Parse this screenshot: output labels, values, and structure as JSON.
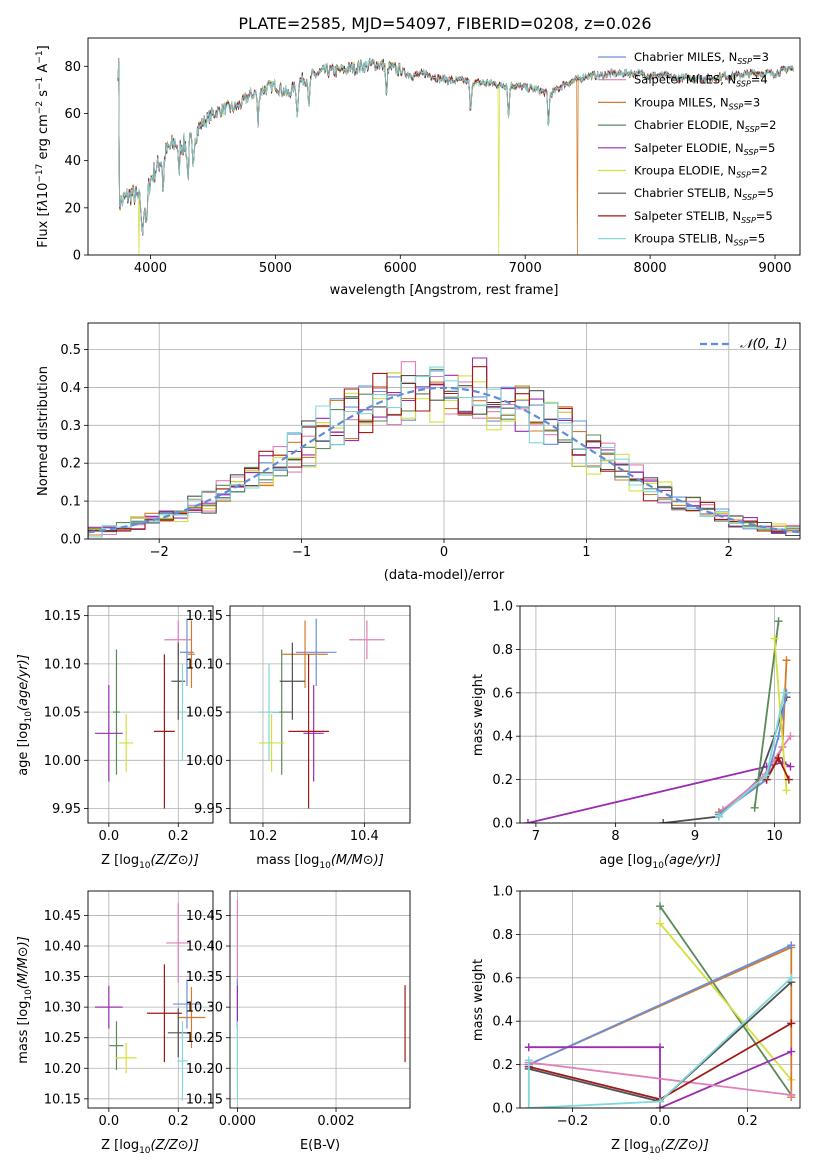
{
  "figure": {
    "title": "PLATE=2585, MJD=54097, FIBERID=0208, z=0.026"
  },
  "colors": {
    "Chabrier MILES": "#6a8fdc",
    "Salpeter MILES": "#e07fb8",
    "Kroupa MILES": "#d47a2a",
    "Chabrier ELODIE": "#5a8a5a",
    "Salpeter ELODIE": "#9a2db0",
    "Kroupa ELODIE": "#d4e040",
    "Chabrier STELIB": "#505050",
    "Salpeter STELIB": "#a01a1a",
    "Kroupa STELIB": "#80d8d8"
  },
  "chart_data": [
    {
      "id": "spectrum",
      "type": "line",
      "xlabel": "wavelength [Angstrom, rest frame]",
      "ylabel": "Flux [f",
      "xlim": [
        3500,
        9200
      ],
      "ylim": [
        0,
        92
      ],
      "xticks": [
        4000,
        5000,
        6000,
        7000,
        8000,
        9000
      ],
      "yticks": [
        0,
        20,
        40,
        60,
        80
      ],
      "legend_position": "top-right",
      "series": [
        {
          "name": "Chabrier MILES",
          "nssp": "3"
        },
        {
          "name": "Salpeter MILES",
          "nssp": "4"
        },
        {
          "name": "Kroupa MILES",
          "nssp": "3"
        },
        {
          "name": "Chabrier ELODIE",
          "nssp": "2"
        },
        {
          "name": "Salpeter ELODIE",
          "nssp": "5"
        },
        {
          "name": "Kroupa ELODIE",
          "nssp": "2"
        },
        {
          "name": "Chabrier STELIB",
          "nssp": "5"
        },
        {
          "name": "Salpeter STELIB",
          "nssp": "5"
        },
        {
          "name": "Kroupa STELIB",
          "nssp": "5"
        }
      ],
      "continuum": {
        "x": [
          3750,
          3800,
          3850,
          3900,
          3950,
          4000,
          4100,
          4200,
          4300,
          4400,
          4500,
          4600,
          4700,
          4800,
          4900,
          5000,
          5100,
          5200,
          5300,
          5400,
          5500,
          5600,
          5700,
          5800,
          5900,
          6000,
          6100,
          6200,
          6300,
          6400,
          6500,
          6600,
          6700,
          6800,
          6900,
          7000,
          7100,
          7200,
          7300,
          7400,
          7500,
          7600,
          7700,
          7800,
          7900,
          8000,
          8100,
          8200,
          8300,
          8400,
          8500,
          8600,
          8700,
          8800,
          8900,
          9000,
          9100
        ],
        "y": [
          22,
          24,
          26,
          24,
          20,
          32,
          42,
          48,
          46,
          55,
          60,
          62,
          63,
          68,
          70,
          72,
          68,
          74,
          76,
          78,
          78,
          79,
          80,
          81,
          80,
          78,
          76,
          77,
          75,
          74,
          74,
          73,
          73,
          72,
          72,
          71,
          70,
          68,
          72,
          74,
          76,
          76,
          77,
          77,
          77,
          76,
          76,
          75,
          75,
          75,
          75,
          76,
          76,
          77,
          77,
          77,
          79
        ]
      },
      "absorption_lines": [
        3934,
        3969,
        4102,
        4227,
        4300,
        4340,
        4861,
        5175,
        5270,
        5890,
        6563,
        6867,
        7186
      ],
      "spikes": [
        {
          "series": "Kroupa ELODIE",
          "x": 3910,
          "to": 0
        },
        {
          "series": "Kroupa ELODIE",
          "x": 6790,
          "to": 0
        },
        {
          "series": "Kroupa MILES",
          "x": 7420,
          "to": 0
        }
      ]
    },
    {
      "id": "residuals",
      "type": "area",
      "xlabel": "(data-model)/error",
      "ylabel": "Normed distribution",
      "xlim": [
        -2.5,
        2.5
      ],
      "ylim": [
        0,
        0.57
      ],
      "xticks": [
        -2,
        -1,
        0,
        1,
        2
      ],
      "yticks": [
        0.0,
        0.1,
        0.2,
        0.3,
        0.4,
        0.5
      ],
      "grid": true,
      "legend_position": "top-right",
      "gaussian_label": "𝒩(0, 1)",
      "bins": {
        "start": -2.5,
        "width": 0.1,
        "count": 50
      }
    },
    {
      "id": "age-vs-Z",
      "type": "scatter",
      "xlabel": "Z [log",
      "ylabel": "age  [log",
      "xlim": [
        -0.06,
        0.3
      ],
      "ylim": [
        9.935,
        10.16
      ],
      "xticks": [
        0.0,
        0.2
      ],
      "yticks": [
        9.95,
        10.0,
        10.05,
        10.1,
        10.15
      ],
      "grid": true,
      "points": [
        {
          "series": "Chabrier MILES",
          "x": 0.225,
          "xerr": 0.02,
          "y": 10.112,
          "yerr": 0.035
        },
        {
          "series": "Salpeter MILES",
          "x": 0.2,
          "xerr": 0.04,
          "y": 10.125,
          "yerr": 0.02
        },
        {
          "series": "Kroupa MILES",
          "x": 0.238,
          "xerr": 0.01,
          "y": 10.11,
          "yerr": 0.035
        },
        {
          "series": "Chabrier ELODIE",
          "x": 0.022,
          "xerr": 0.01,
          "y": 10.05,
          "yerr": 0.065
        },
        {
          "series": "Salpeter ELODIE",
          "x": 0.0,
          "xerr": 0.04,
          "y": 10.028,
          "yerr": 0.05
        },
        {
          "series": "Kroupa ELODIE",
          "x": 0.05,
          "xerr": 0.02,
          "y": 10.018,
          "yerr": 0.03
        },
        {
          "series": "Chabrier STELIB",
          "x": 0.2,
          "xerr": 0.02,
          "y": 10.082,
          "yerr": 0.04
        },
        {
          "series": "Salpeter STELIB",
          "x": 0.16,
          "xerr": 0.03,
          "y": 10.03,
          "yerr": 0.08
        },
        {
          "series": "Kroupa STELIB",
          "x": 0.212,
          "xerr": 0.01,
          "y": 10.05,
          "yerr": 0.05
        }
      ]
    },
    {
      "id": "age-vs-mass",
      "type": "scatter",
      "xlabel": "mass [log",
      "ylabel": "",
      "xlim": [
        10.135,
        10.49
      ],
      "ylim": [
        9.935,
        10.16
      ],
      "xticks": [
        10.2,
        10.4
      ],
      "yticks": [
        9.95,
        10.0,
        10.05,
        10.1,
        10.15
      ],
      "grid": true,
      "points": [
        {
          "series": "Chabrier MILES",
          "x": 10.305,
          "xerr": 0.04,
          "y": 10.112,
          "yerr": 0.035
        },
        {
          "series": "Salpeter MILES",
          "x": 10.405,
          "xerr": 0.035,
          "y": 10.125,
          "yerr": 0.02
        },
        {
          "series": "Kroupa MILES",
          "x": 10.283,
          "xerr": 0.045,
          "y": 10.11,
          "yerr": 0.035
        },
        {
          "series": "Chabrier ELODIE",
          "x": 10.237,
          "xerr": 0.02,
          "y": 10.05,
          "yerr": 0.065
        },
        {
          "series": "Salpeter ELODIE",
          "x": 10.3,
          "xerr": 0.02,
          "y": 10.028,
          "yerr": 0.05
        },
        {
          "series": "Kroupa ELODIE",
          "x": 10.217,
          "xerr": 0.025,
          "y": 10.018,
          "yerr": 0.03
        },
        {
          "series": "Chabrier STELIB",
          "x": 10.258,
          "xerr": 0.025,
          "y": 10.082,
          "yerr": 0.04
        },
        {
          "series": "Salpeter STELIB",
          "x": 10.29,
          "xerr": 0.04,
          "y": 10.03,
          "yerr": 0.08
        },
        {
          "series": "Kroupa STELIB",
          "x": 10.212,
          "xerr": 0.02,
          "y": 10.05,
          "yerr": 0.05
        }
      ]
    },
    {
      "id": "weight-vs-age",
      "type": "line",
      "xlabel": "age  [log",
      "ylabel": "mass weight",
      "xlim": [
        6.8,
        10.32
      ],
      "ylim": [
        0,
        1
      ],
      "xticks": [
        7,
        8,
        9,
        10
      ],
      "yticks": [
        0.0,
        0.2,
        0.4,
        0.6,
        0.8,
        1.0
      ],
      "grid": true,
      "series": [
        {
          "name": "Salpeter ELODIE",
          "x": [
            6.9,
            9.9,
            10.1,
            10.2
          ],
          "y": [
            0.0,
            0.26,
            0.28,
            0.26
          ]
        },
        {
          "name": "Chabrier STELIB",
          "x": [
            8.6,
            9.3,
            9.8,
            10.0,
            10.15
          ],
          "y": [
            0.0,
            0.03,
            0.2,
            0.4,
            0.58
          ]
        },
        {
          "name": "Kroupa MILES",
          "x": [
            9.3,
            9.9,
            10.1,
            10.15
          ],
          "y": [
            0.05,
            0.2,
            0.35,
            0.75
          ]
        },
        {
          "name": "Salpeter MILES",
          "x": [
            9.35,
            9.85,
            10.1,
            10.2
          ],
          "y": [
            0.06,
            0.21,
            0.35,
            0.4
          ]
        },
        {
          "name": "Chabrier MILES",
          "x": [
            9.3,
            9.9,
            10.05,
            10.15
          ],
          "y": [
            0.04,
            0.2,
            0.4,
            0.6
          ]
        },
        {
          "name": "Chabrier ELODIE",
          "x": [
            9.75,
            10.05
          ],
          "y": [
            0.07,
            0.93
          ]
        },
        {
          "name": "Kroupa ELODIE",
          "x": [
            10.0,
            10.15
          ],
          "y": [
            0.85,
            0.15
          ]
        },
        {
          "name": "Salpeter STELIB",
          "x": [
            9.9,
            10.05,
            10.18
          ],
          "y": [
            0.2,
            0.3,
            0.2
          ]
        },
        {
          "name": "Kroupa STELIB",
          "x": [
            9.3,
            9.9,
            10.12
          ],
          "y": [
            0.03,
            0.22,
            0.6
          ]
        }
      ]
    },
    {
      "id": "mass-vs-Z",
      "type": "scatter",
      "xlabel": "Z [log",
      "ylabel": "mass [log",
      "xlim": [
        -0.06,
        0.3
      ],
      "ylim": [
        10.135,
        10.49
      ],
      "xticks": [
        0.0,
        0.2
      ],
      "yticks": [
        10.15,
        10.2,
        10.25,
        10.3,
        10.35,
        10.4,
        10.45
      ],
      "grid": true,
      "points": [
        {
          "series": "Chabrier MILES",
          "x": 0.225,
          "xerr": 0.04,
          "y": 10.305,
          "yerr": 0.04
        },
        {
          "series": "Salpeter MILES",
          "x": 0.2,
          "xerr": 0.035,
          "y": 10.405,
          "yerr": 0.065
        },
        {
          "series": "Kroupa MILES",
          "x": 0.238,
          "xerr": 0.04,
          "y": 10.283,
          "yerr": 0.05
        },
        {
          "series": "Chabrier ELODIE",
          "x": 0.022,
          "xerr": 0.02,
          "y": 10.237,
          "yerr": 0.04
        },
        {
          "series": "Salpeter ELODIE",
          "x": 0.0,
          "xerr": 0.04,
          "y": 10.3,
          "yerr": 0.035
        },
        {
          "series": "Kroupa ELODIE",
          "x": 0.05,
          "xerr": 0.03,
          "y": 10.217,
          "yerr": 0.025
        },
        {
          "series": "Chabrier STELIB",
          "x": 0.2,
          "xerr": 0.03,
          "y": 10.258,
          "yerr": 0.04
        },
        {
          "series": "Salpeter STELIB",
          "x": 0.16,
          "xerr": 0.05,
          "y": 10.29,
          "yerr": 0.08
        },
        {
          "series": "Kroupa STELIB",
          "x": 0.212,
          "xerr": 0.015,
          "y": 10.212,
          "yerr": 0.065
        }
      ]
    },
    {
      "id": "mass-vs-EBV",
      "type": "scatter",
      "xlabel": "E(B-V)",
      "ylabel": "",
      "xlim": [
        -0.00015,
        0.0035
      ],
      "ylim": [
        10.135,
        10.49
      ],
      "xticks": [
        0.0,
        0.002
      ],
      "xticklabels": [
        "0.000",
        "0.002"
      ],
      "yticks": [
        10.15,
        10.2,
        10.25,
        10.3,
        10.35,
        10.4,
        10.45
      ],
      "grid": true,
      "points": [
        {
          "series": "Salpeter MILES",
          "x": 0.0,
          "y": 10.405,
          "yerr": 0.07
        },
        {
          "series": "Chabrier MILES",
          "x": 0.0,
          "y": 10.305,
          "yerr": 0.04
        },
        {
          "series": "Salpeter ELODIE",
          "x": 0.0,
          "y": 10.3,
          "yerr": 0.035
        },
        {
          "series": "Kroupa ELODIE",
          "x": 0.0,
          "y": 10.217,
          "yerr": 0.04
        },
        {
          "series": "Kroupa STELIB",
          "x": 0.0,
          "y": 10.212,
          "yerr": 0.065
        },
        {
          "series": "Salpeter STELIB",
          "x": 0.0034,
          "y": 10.273,
          "yerr": 0.063
        }
      ]
    },
    {
      "id": "weight-vs-Z",
      "type": "line",
      "xlabel": "Z [log",
      "ylabel": "mass weight",
      "xlim": [
        -0.32,
        0.32
      ],
      "ylim": [
        0,
        1
      ],
      "xticks": [
        -0.2,
        0.0,
        0.2
      ],
      "yticks": [
        0.0,
        0.2,
        0.4,
        0.6,
        0.8,
        1.0
      ],
      "grid": true,
      "series": [
        {
          "name": "Chabrier ELODIE",
          "x": [
            0.0,
            0.3
          ],
          "y": [
            0.93,
            0.06
          ]
        },
        {
          "name": "Kroupa ELODIE",
          "x": [
            0.0,
            0.3
          ],
          "y": [
            0.85,
            0.13
          ]
        },
        {
          "name": "Kroupa MILES",
          "x": [
            -0.3,
            0.3,
            0.3
          ],
          "y": [
            0.2,
            0.74,
            0.05
          ]
        },
        {
          "name": "Chabrier MILES",
          "x": [
            -0.3,
            0.3
          ],
          "y": [
            0.2,
            0.75
          ]
        },
        {
          "name": "Salpeter ELODIE",
          "x": [
            -0.3,
            0.0,
            0.0,
            0.3
          ],
          "y": [
            0.28,
            0.28,
            0.0,
            0.26
          ]
        },
        {
          "name": "Salpeter MILES",
          "x": [
            -0.3,
            0.3
          ],
          "y": [
            0.21,
            0.06
          ]
        },
        {
          "name": "Chabrier STELIB",
          "x": [
            -0.3,
            0.0,
            0.3
          ],
          "y": [
            0.18,
            0.03,
            0.58
          ]
        },
        {
          "name": "Salpeter STELIB",
          "x": [
            -0.3,
            0.0,
            0.3
          ],
          "y": [
            0.19,
            0.04,
            0.39
          ]
        },
        {
          "name": "Kroupa STELIB",
          "x": [
            -0.3,
            -0.3,
            0.0,
            0.3
          ],
          "y": [
            0.22,
            0.0,
            0.03,
            0.6
          ]
        }
      ]
    }
  ]
}
